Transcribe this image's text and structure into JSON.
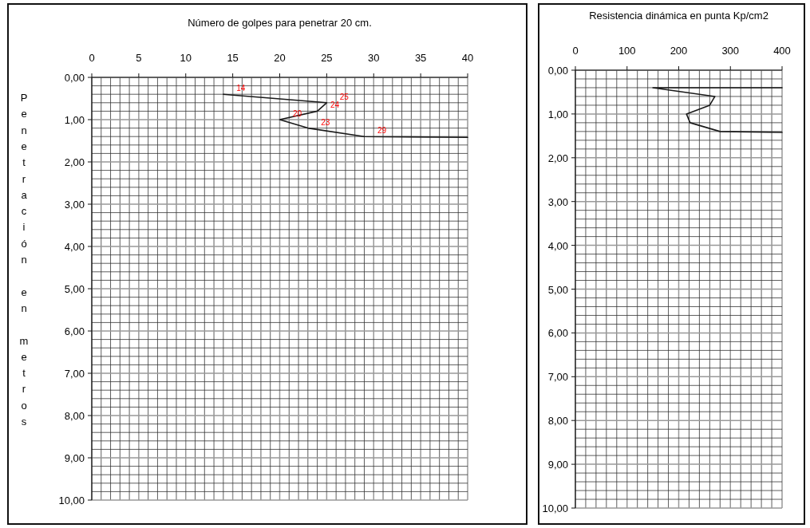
{
  "chart_data": [
    {
      "type": "line",
      "title": "Número de golpes para penetrar 20 cm.",
      "ylabel": "Penetración en metros",
      "series": [
        {
          "color": "#1a1a1a",
          "x": [
            14,
            25,
            24,
            20,
            23,
            29,
            40
          ],
          "values": [
            0.4,
            0.6,
            0.8,
            1.0,
            1.2,
            1.4,
            1.42
          ]
        }
      ],
      "annotations": [
        {
          "text": "14",
          "x": 14,
          "y": 0.4
        },
        {
          "text": "25",
          "x": 25,
          "y": 0.6
        },
        {
          "text": "24",
          "x": 24,
          "y": 0.8
        },
        {
          "text": "20",
          "x": 20,
          "y": 1.0
        },
        {
          "text": "23",
          "x": 23,
          "y": 1.2
        },
        {
          "text": "29",
          "x": 29,
          "y": 1.4
        }
      ],
      "xlim": [
        0,
        40
      ],
      "xticks": [
        0,
        {
          "value": 1,
          "label": null
        },
        {
          "value": 2,
          "label": null
        },
        {
          "value": 3,
          "label": null
        },
        {
          "value": 4,
          "label": null
        },
        5,
        {
          "value": 6,
          "label": null
        },
        {
          "value": 7,
          "label": null
        },
        {
          "value": 8,
          "label": null
        },
        {
          "value": 9,
          "label": null
        },
        10,
        {
          "value": 11,
          "label": null
        },
        {
          "value": 12,
          "label": null
        },
        {
          "value": 13,
          "label": null
        },
        {
          "value": 14,
          "label": null
        },
        15,
        {
          "value": 16,
          "label": null
        },
        {
          "value": 17,
          "label": null
        },
        {
          "value": 18,
          "label": null
        },
        {
          "value": 19,
          "label": null
        },
        20,
        {
          "value": 21,
          "label": null
        },
        {
          "value": 22,
          "label": null
        },
        {
          "value": 23,
          "label": null
        },
        {
          "value": 24,
          "label": null
        },
        25,
        {
          "value": 26,
          "label": null
        },
        {
          "value": 27,
          "label": null
        },
        {
          "value": 28,
          "label": null
        },
        {
          "value": 29,
          "label": null
        },
        30,
        {
          "value": 31,
          "label": null
        },
        {
          "value": 32,
          "label": null
        },
        {
          "value": 33,
          "label": null
        },
        {
          "value": 34,
          "label": null
        },
        35,
        {
          "value": 36,
          "label": null
        },
        {
          "value": 37,
          "label": null
        },
        {
          "value": 38,
          "label": null
        },
        {
          "value": 39,
          "label": null
        },
        40
      ],
      "ylim": [
        10,
        0
      ],
      "yticks": [
        {
          "value": 0,
          "label": "0,00"
        },
        {
          "value": 0.2,
          "label": null
        },
        {
          "value": 0.4,
          "label": null
        },
        {
          "value": 0.6,
          "label": null
        },
        {
          "value": 0.8,
          "label": null
        },
        {
          "value": 1,
          "label": "1,00"
        },
        {
          "value": 1.2,
          "label": null
        },
        {
          "value": 1.4,
          "label": null
        },
        {
          "value": 1.6,
          "label": null
        },
        {
          "value": 1.8,
          "label": null
        },
        {
          "value": 2,
          "label": "2,00"
        },
        {
          "value": 2.2,
          "label": null
        },
        {
          "value": 2.4,
          "label": null
        },
        {
          "value": 2.6,
          "label": null
        },
        {
          "value": 2.8,
          "label": null
        },
        {
          "value": 3,
          "label": "3,00"
        },
        {
          "value": 3.2,
          "label": null
        },
        {
          "value": 3.4,
          "label": null
        },
        {
          "value": 3.6,
          "label": null
        },
        {
          "value": 3.8,
          "label": null
        },
        {
          "value": 4,
          "label": "4,00"
        },
        {
          "value": 4.2,
          "label": null
        },
        {
          "value": 4.4,
          "label": null
        },
        {
          "value": 4.6,
          "label": null
        },
        {
          "value": 4.8,
          "label": null
        },
        {
          "value": 5,
          "label": "5,00"
        },
        {
          "value": 5.2,
          "label": null
        },
        {
          "value": 5.4,
          "label": null
        },
        {
          "value": 5.6,
          "label": null
        },
        {
          "value": 5.8,
          "label": null
        },
        {
          "value": 6,
          "label": "6,00"
        },
        {
          "value": 6.2,
          "label": null
        },
        {
          "value": 6.4,
          "label": null
        },
        {
          "value": 6.6,
          "label": null
        },
        {
          "value": 6.8,
          "label": null
        },
        {
          "value": 7,
          "label": "7,00"
        },
        {
          "value": 7.2,
          "label": null
        },
        {
          "value": 7.4,
          "label": null
        },
        {
          "value": 7.6,
          "label": null
        },
        {
          "value": 7.8,
          "label": null
        },
        {
          "value": 8,
          "label": "8,00"
        },
        {
          "value": 8.2,
          "label": null
        },
        {
          "value": 8.4,
          "label": null
        },
        {
          "value": 8.6,
          "label": null
        },
        {
          "value": 8.8,
          "label": null
        },
        {
          "value": 9,
          "label": "9,00"
        },
        {
          "value": 9.2,
          "label": null
        },
        {
          "value": 9.4,
          "label": null
        },
        {
          "value": 9.6,
          "label": null
        },
        {
          "value": 9.8,
          "label": null
        },
        {
          "value": 10,
          "label": "10,00"
        }
      ],
      "grid": true,
      "marker": "none",
      "line_style": "solid"
    },
    {
      "type": "line",
      "title": "Resistencia dinámica en punta Kp/cm2",
      "series": [
        {
          "color": "#1a1a1a",
          "x": [
            400,
            150,
            270,
            260,
            215,
            222,
            280,
            400
          ],
          "values": [
            0.4,
            0.4,
            0.6,
            0.8,
            1.0,
            1.2,
            1.4,
            1.42
          ]
        }
      ],
      "xlim": [
        0,
        400
      ],
      "xticks": [
        0,
        {
          "value": 20,
          "label": null
        },
        {
          "value": 40,
          "label": null
        },
        {
          "value": 60,
          "label": null
        },
        {
          "value": 80,
          "label": null
        },
        100,
        {
          "value": 120,
          "label": null
        },
        {
          "value": 140,
          "label": null
        },
        {
          "value": 160,
          "label": null
        },
        {
          "value": 180,
          "label": null
        },
        200,
        {
          "value": 220,
          "label": null
        },
        {
          "value": 240,
          "label": null
        },
        {
          "value": 260,
          "label": null
        },
        {
          "value": 280,
          "label": null
        },
        300,
        {
          "value": 320,
          "label": null
        },
        {
          "value": 340,
          "label": null
        },
        {
          "value": 360,
          "label": null
        },
        {
          "value": 380,
          "label": null
        },
        400
      ],
      "ylim": [
        10,
        0
      ],
      "yticks": [
        {
          "value": 0,
          "label": "0,00"
        },
        {
          "value": 0.2,
          "label": null
        },
        {
          "value": 0.4,
          "label": null
        },
        {
          "value": 0.6,
          "label": null
        },
        {
          "value": 0.8,
          "label": null
        },
        {
          "value": 1,
          "label": "1,00"
        },
        {
          "value": 1.2,
          "label": null
        },
        {
          "value": 1.4,
          "label": null
        },
        {
          "value": 1.6,
          "label": null
        },
        {
          "value": 1.8,
          "label": null
        },
        {
          "value": 2,
          "label": "2,00"
        },
        {
          "value": 2.2,
          "label": null
        },
        {
          "value": 2.4,
          "label": null
        },
        {
          "value": 2.6,
          "label": null
        },
        {
          "value": 2.8,
          "label": null
        },
        {
          "value": 3,
          "label": "3,00"
        },
        {
          "value": 3.2,
          "label": null
        },
        {
          "value": 3.4,
          "label": null
        },
        {
          "value": 3.6,
          "label": null
        },
        {
          "value": 3.8,
          "label": null
        },
        {
          "value": 4,
          "label": "4,00"
        },
        {
          "value": 4.2,
          "label": null
        },
        {
          "value": 4.4,
          "label": null
        },
        {
          "value": 4.6,
          "label": null
        },
        {
          "value": 4.8,
          "label": null
        },
        {
          "value": 5,
          "label": "5,00"
        },
        {
          "value": 5.2,
          "label": null
        },
        {
          "value": 5.4,
          "label": null
        },
        {
          "value": 5.6,
          "label": null
        },
        {
          "value": 5.8,
          "label": null
        },
        {
          "value": 6,
          "label": "6,00"
        },
        {
          "value": 6.2,
          "label": null
        },
        {
          "value": 6.4,
          "label": null
        },
        {
          "value": 6.6,
          "label": null
        },
        {
          "value": 6.8,
          "label": null
        },
        {
          "value": 7,
          "label": "7,00"
        },
        {
          "value": 7.2,
          "label": null
        },
        {
          "value": 7.4,
          "label": null
        },
        {
          "value": 7.6,
          "label": null
        },
        {
          "value": 7.8,
          "label": null
        },
        {
          "value": 8,
          "label": "8,00"
        },
        {
          "value": 8.2,
          "label": null
        },
        {
          "value": 8.4,
          "label": null
        },
        {
          "value": 8.6,
          "label": null
        },
        {
          "value": 8.8,
          "label": null
        },
        {
          "value": 9,
          "label": "9,00"
        },
        {
          "value": 9.2,
          "label": null
        },
        {
          "value": 9.4,
          "label": null
        },
        {
          "value": 9.6,
          "label": null
        },
        {
          "value": 9.8,
          "label": null
        },
        {
          "value": 10,
          "label": "10,00"
        }
      ],
      "grid": true,
      "marker": "none",
      "line_style": "solid"
    }
  ]
}
